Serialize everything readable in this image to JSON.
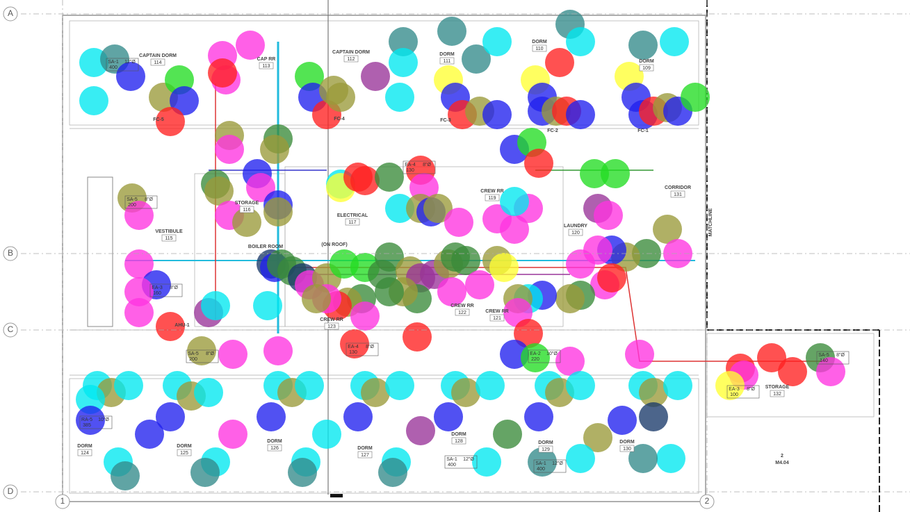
{
  "grid": {
    "rows": [
      "A",
      "B",
      "C",
      "D"
    ],
    "cols": [
      "1",
      "2"
    ]
  },
  "rooms": [
    {
      "name": "CAPTAIN DORM",
      "number": "114"
    },
    {
      "name": "CAP RR",
      "number": "113"
    },
    {
      "name": "CAPTAIN DORM",
      "number": "112"
    },
    {
      "name": "DORM",
      "number": "111"
    },
    {
      "name": "DORM",
      "number": "110"
    },
    {
      "name": "DORM",
      "number": "109"
    },
    {
      "name": "STORAGE",
      "number": "116"
    },
    {
      "name": "VESTIBULE",
      "number": "115"
    },
    {
      "name": "ELECTRICAL",
      "number": "117"
    },
    {
      "name": "CREW RR",
      "number": "119"
    },
    {
      "name": "LAUNDRY",
      "number": "120"
    },
    {
      "name": "CORRIDOR",
      "number": "131"
    },
    {
      "name": "CREW RR",
      "number": "122"
    },
    {
      "name": "CREW RR",
      "number": "121"
    },
    {
      "name": "CREW RR",
      "number": "123"
    },
    {
      "name": "STORAGE",
      "number": "132"
    },
    {
      "name": "DORM",
      "number": "124"
    },
    {
      "name": "DORM",
      "number": "125"
    },
    {
      "name": "DORM",
      "number": "126"
    },
    {
      "name": "DORM",
      "number": "127"
    },
    {
      "name": "DORM",
      "number": "128"
    },
    {
      "name": "DORM",
      "number": "129"
    },
    {
      "name": "DORM",
      "number": "130"
    }
  ],
  "labels": [
    "BOILER ROOM",
    "(ON ROOF)",
    "AHU-1",
    "MATCHLINE",
    "M4.04",
    "2",
    "FC-5",
    "FC-4",
    "FC-3",
    "FC-2",
    "FC-1"
  ],
  "tags": [
    {
      "label": "SA-1",
      "cfm": "400",
      "size": "12\"Ø"
    },
    {
      "label": "RA-5",
      "cfm": "385",
      "size": "10\"Ø"
    },
    {
      "label": "SA-5",
      "cfm": "200",
      "size": "8\"Ø"
    },
    {
      "label": "EA-3",
      "cfm": "160",
      "size": "8\"Ø"
    },
    {
      "label": "EA-4",
      "cfm": "130",
      "size": "8\"Ø"
    },
    {
      "label": "EA-2",
      "cfm": "220",
      "size": "10\"Ø"
    },
    {
      "label": "SA-5",
      "cfm": "140",
      "size": "8\"Ø"
    },
    {
      "label": "EA-3",
      "cfm": "100",
      "size": "8\"Ø"
    },
    {
      "label": "SA-1",
      "cfm": "400",
      "size": "12\"Ø"
    },
    {
      "label": "SA-1",
      "cfm": "400",
      "size": "12\"Ø"
    },
    {
      "label": "SA-5",
      "cfm": "200",
      "size": "8\"Ø"
    },
    {
      "label": "EA-4",
      "cfm": "130",
      "size": "8\"Ø"
    }
  ]
}
